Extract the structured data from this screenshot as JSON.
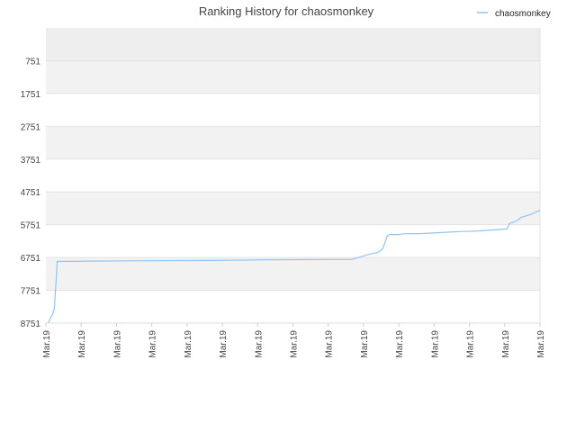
{
  "chart_data": {
    "type": "line",
    "title": "Ranking History for chaosmonkey",
    "xlabel": "",
    "ylabel": "",
    "y_inverted": true,
    "ylim": [
      8751,
      -249
    ],
    "yticks": [
      751,
      1751,
      2751,
      3751,
      4751,
      5751,
      6751,
      7751,
      8751
    ],
    "xtick_labels": [
      "Mar.19",
      "Mar.19",
      "Mar.19",
      "Mar.19",
      "Mar.19",
      "Mar.19",
      "Mar.19",
      "Mar.19",
      "Mar.19",
      "Mar.19",
      "Mar.19",
      "Mar.19",
      "Mar.19",
      "Mar.19",
      "Mar.19"
    ],
    "legend": {
      "position": "top-right"
    },
    "grid": true,
    "series": [
      {
        "name": "chaosmonkey",
        "color": "#91c4f2",
        "points": [
          [
            0.005,
            8751
          ],
          [
            0.015,
            8450
          ],
          [
            0.018,
            8300
          ],
          [
            0.02,
            7800
          ],
          [
            0.022,
            7400
          ],
          [
            0.024,
            6870
          ],
          [
            0.06,
            6870
          ],
          [
            0.09,
            6860
          ],
          [
            0.22,
            6850
          ],
          [
            0.35,
            6840
          ],
          [
            0.48,
            6820
          ],
          [
            0.6,
            6810
          ],
          [
            0.65,
            6810
          ],
          [
            0.685,
            6660
          ],
          [
            0.705,
            6600
          ],
          [
            0.715,
            6500
          ],
          [
            0.72,
            6320
          ],
          [
            0.725,
            6100
          ],
          [
            0.73,
            6050
          ],
          [
            0.75,
            6050
          ],
          [
            0.76,
            6030
          ],
          [
            0.8,
            6020
          ],
          [
            0.84,
            5990
          ],
          [
            0.88,
            5960
          ],
          [
            0.92,
            5940
          ],
          [
            0.96,
            5900
          ],
          [
            0.98,
            5880
          ],
          [
            0.985,
            5720
          ],
          [
            0.99,
            5690
          ],
          [
            1.0,
            5640
          ],
          [
            1.01,
            5530
          ],
          [
            1.03,
            5440
          ],
          [
            1.05,
            5310
          ]
        ]
      }
    ]
  }
}
